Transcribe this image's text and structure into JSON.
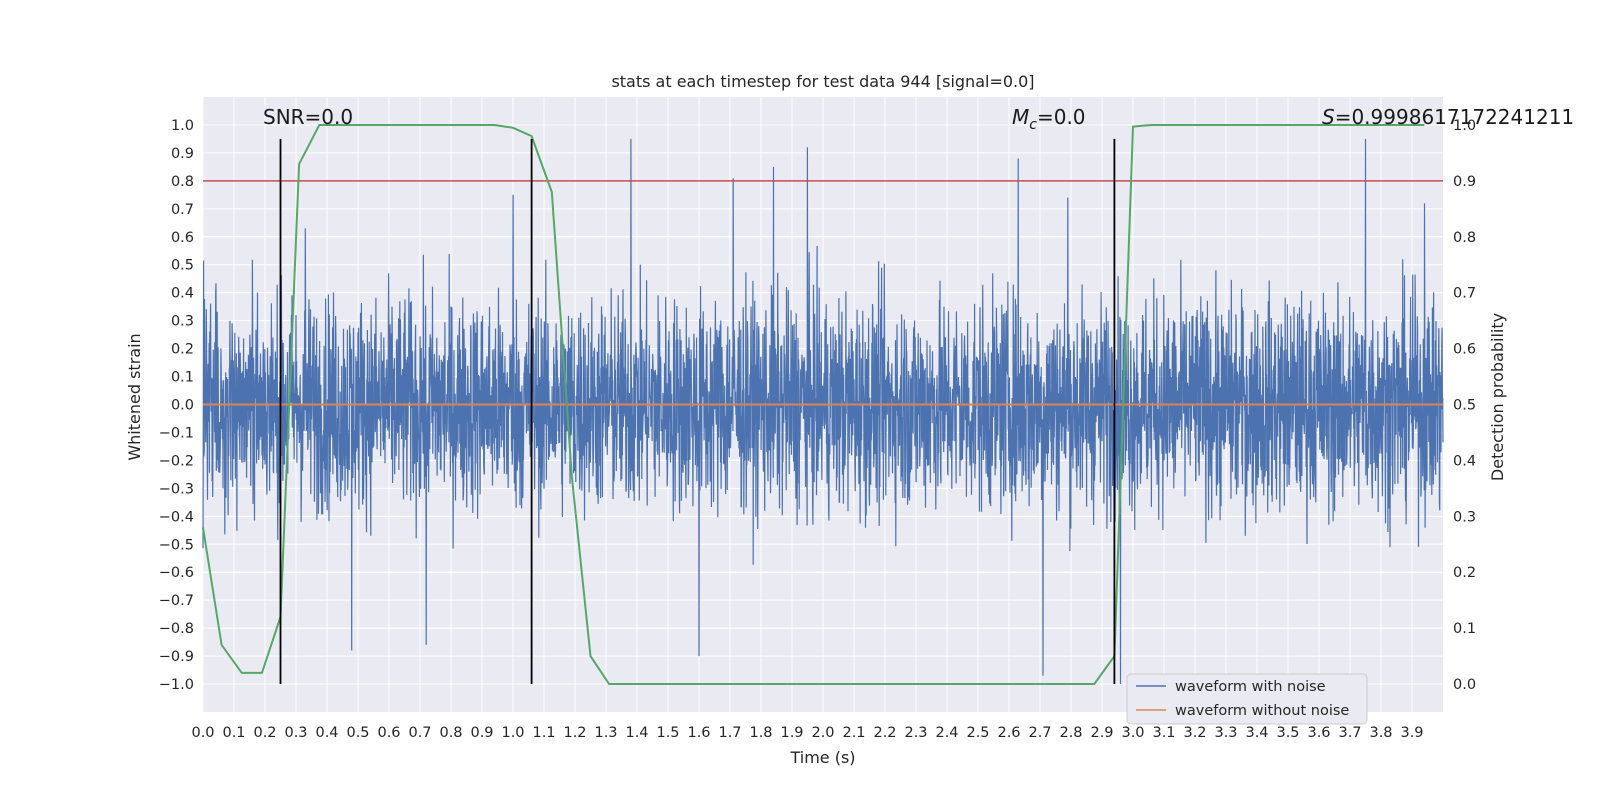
{
  "chart_data": {
    "type": "line",
    "title": "stats at each timestep for test data 944 [signal=0.0]",
    "xlabel": "Time (s)",
    "ylabel": "Whitened strain",
    "y2label": "Detection probability",
    "xlim": [
      0.0,
      4.0
    ],
    "ylim": [
      -1.1,
      1.1
    ],
    "y2lim": [
      -0.05,
      1.05
    ],
    "xticks": [
      "0.0",
      "0.1",
      "0.2",
      "0.3",
      "0.4",
      "0.5",
      "0.6",
      "0.7",
      "0.8",
      "0.9",
      "1.0",
      "1.1",
      "1.2",
      "1.3",
      "1.4",
      "1.5",
      "1.6",
      "1.7",
      "1.8",
      "1.9",
      "2.0",
      "2.1",
      "2.2",
      "2.3",
      "2.4",
      "2.5",
      "2.6",
      "2.7",
      "2.8",
      "2.9",
      "3.0",
      "3.1",
      "3.2",
      "3.3",
      "3.4",
      "3.5",
      "3.6",
      "3.7",
      "3.8",
      "3.9"
    ],
    "yticks": [
      "1.0",
      "0.9",
      "0.8",
      "0.7",
      "0.6",
      "0.5",
      "0.4",
      "0.3",
      "0.2",
      "0.1",
      "0.0",
      "−0.1",
      "−0.2",
      "−0.3",
      "−0.4",
      "−0.5",
      "−0.6",
      "−0.7",
      "−0.8",
      "−0.9",
      "−1.0"
    ],
    "y2ticks": [
      "1.0",
      "0.9",
      "0.8",
      "0.7",
      "0.6",
      "0.5",
      "0.4",
      "0.3",
      "0.2",
      "0.1",
      "0.0"
    ],
    "annotations": {
      "snr": "SNR=0.0",
      "mc_symbol": "M",
      "mc_sub": "c",
      "mc_value": "=0.0",
      "s_symbol": "S",
      "s_value": "=0.9998617172241211"
    },
    "legend": {
      "placement": "lower-right",
      "entries": [
        {
          "label": "waveform with noise",
          "color": "#4c72b0"
        },
        {
          "label": "waveform without noise",
          "color": "#dd8452"
        }
      ]
    },
    "series": [
      {
        "name": "waveform with noise",
        "color": "#4c72b0",
        "noise_envelope": {
          "typical_amplitude": 0.35,
          "max_abs": 1.0,
          "approx_samples": 4096
        },
        "notable_peaks": [
          {
            "x": 1.38,
            "y": 0.95
          },
          {
            "x": 1.95,
            "y": 0.92
          },
          {
            "x": 3.75,
            "y": 0.95
          },
          {
            "x": 1.84,
            "y": 0.85
          },
          {
            "x": 2.63,
            "y": 0.88
          },
          {
            "x": 1.71,
            "y": 0.81
          },
          {
            "x": 2.79,
            "y": 0.74
          },
          {
            "x": 1.0,
            "y": 0.75
          },
          {
            "x": 0.33,
            "y": 0.63
          },
          {
            "x": 1.6,
            "y": -0.9
          },
          {
            "x": 2.71,
            "y": -0.97
          },
          {
            "x": 2.96,
            "y": -1.0
          },
          {
            "x": 0.48,
            "y": -0.88
          },
          {
            "x": 0.72,
            "y": -0.86
          },
          {
            "x": 3.94,
            "y": 0.72
          }
        ]
      },
      {
        "name": "waveform without noise",
        "color": "#dd8452",
        "x": [
          0.0,
          4.0
        ],
        "y": [
          0.0,
          0.0
        ]
      },
      {
        "name": "detection probability",
        "color": "#55a868",
        "axis": "right",
        "x": [
          0.0,
          0.06,
          0.125,
          0.19,
          0.25,
          0.31,
          0.375,
          0.44,
          0.5,
          0.56,
          0.625,
          0.69,
          0.75,
          0.81,
          0.875,
          0.94,
          1.0,
          1.06,
          1.125,
          1.19,
          1.25,
          1.31,
          1.375,
          1.44,
          1.5,
          1.56,
          1.625,
          1.69,
          1.75,
          1.81,
          1.875,
          1.94,
          2.0,
          2.06,
          2.125,
          2.19,
          2.25,
          2.31,
          2.375,
          2.44,
          2.5,
          2.56,
          2.625,
          2.69,
          2.75,
          2.81,
          2.875,
          2.94,
          3.0,
          3.06,
          3.125,
          3.19,
          3.25,
          3.31,
          3.375,
          3.44,
          3.5,
          3.56,
          3.625,
          3.69,
          3.75,
          3.81,
          3.875,
          3.94
        ],
        "y": [
          0.28,
          0.07,
          0.02,
          0.02,
          0.12,
          0.93,
          1.0,
          1.0,
          1.0,
          1.0,
          1.0,
          1.0,
          1.0,
          1.0,
          1.0,
          1.0,
          0.995,
          0.98,
          0.88,
          0.37,
          0.05,
          0.0,
          0.0,
          0.0,
          0.0,
          0.0,
          0.0,
          0.0,
          0.0,
          0.0,
          0.0,
          0.0,
          0.0,
          0.0,
          0.0,
          0.0,
          0.0,
          0.0,
          0.0,
          0.0,
          0.0,
          0.0,
          0.0,
          0.0,
          0.0,
          0.0,
          0.0,
          0.05,
          0.997,
          1.0,
          1.0,
          1.0,
          1.0,
          1.0,
          1.0,
          1.0,
          1.0,
          1.0,
          1.0,
          1.0,
          1.0,
          1.0,
          1.0,
          1.0
        ]
      }
    ],
    "threshold": {
      "axis": "right",
      "y": 0.9,
      "color": "#c44e52"
    },
    "vertical_markers": {
      "x": [
        0.25,
        1.06,
        2.94
      ],
      "y_range": [
        -1.0,
        0.95
      ],
      "color": "#000000"
    }
  }
}
